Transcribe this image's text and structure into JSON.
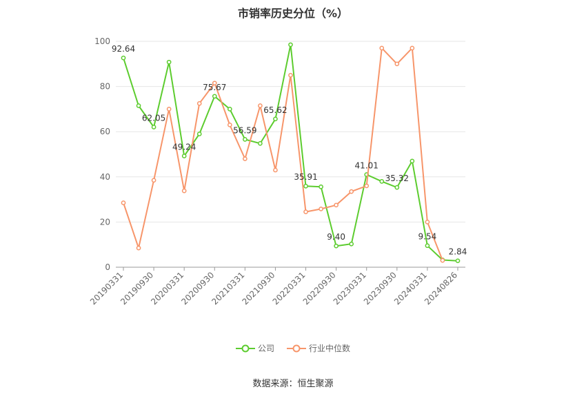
{
  "title": "市销率历史分位（%）",
  "source": "数据来源：恒生聚源",
  "legend": [
    {
      "label": "公司",
      "color": "#5ccc2e"
    },
    {
      "label": "行业中位数",
      "color": "#f7956a"
    }
  ],
  "chart_data": {
    "type": "line",
    "title": "市销率历史分位（%）",
    "ylim": [
      0,
      100
    ],
    "yticks": [
      0,
      20,
      40,
      60,
      80,
      100
    ],
    "grid": true,
    "legend_position": "bottom",
    "xtick_labels": [
      "20190331",
      "20190930",
      "20200331",
      "20200930",
      "20210331",
      "20210930",
      "20220331",
      "20220930",
      "20230331",
      "20230930",
      "20240331",
      "20240826"
    ],
    "x": [
      "20190331",
      "20190630",
      "20190930",
      "20191231",
      "20200331",
      "20200630",
      "20200930",
      "20201231",
      "20210331",
      "20210630",
      "20210930",
      "20211231",
      "20220331",
      "20220630",
      "20220930",
      "20221231",
      "20230331",
      "20230630",
      "20230930",
      "20231231",
      "20240331",
      "20240630",
      "20240826"
    ],
    "series": [
      {
        "name": "公司",
        "color": "#5ccc2e",
        "values": [
          92.64,
          71.5,
          62.05,
          90.8,
          49.24,
          59.0,
          75.67,
          70.0,
          56.59,
          54.8,
          65.62,
          98.5,
          35.91,
          35.6,
          9.4,
          10.3,
          41.01,
          38.0,
          35.32,
          47.0,
          9.54,
          3.2,
          2.84
        ],
        "labels": {
          "0": "92.64",
          "2": "62.05",
          "4": "49.24",
          "6": "75.67",
          "8": "56.59",
          "10": "65.62",
          "12": "35.91",
          "14": "9.40",
          "16": "41.01",
          "18": "35.32",
          "20": "9.54",
          "22": "2.84"
        }
      },
      {
        "name": "行业中位数",
        "color": "#f7956a",
        "values": [
          28.5,
          8.5,
          38.5,
          70.0,
          33.8,
          72.5,
          81.5,
          63.0,
          48.0,
          71.5,
          43.0,
          85.0,
          24.5,
          25.8,
          27.5,
          33.5,
          36.0,
          97.0,
          90.0,
          97.0,
          20.0,
          3.0,
          null
        ]
      }
    ]
  }
}
